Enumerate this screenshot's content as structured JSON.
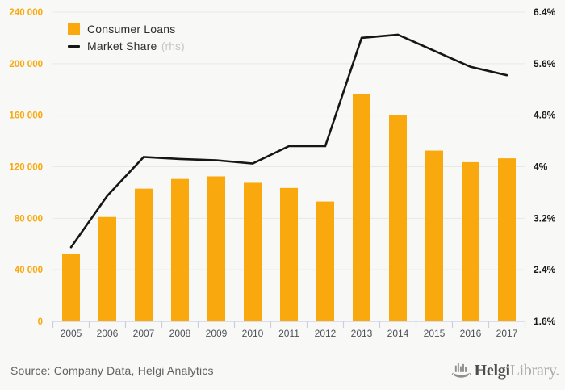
{
  "chart_data": {
    "type": "bar+line",
    "categories": [
      "2005",
      "2006",
      "2007",
      "2008",
      "2009",
      "2010",
      "2011",
      "2012",
      "2013",
      "2014",
      "2015",
      "2016",
      "2017"
    ],
    "series": [
      {
        "name": "Consumer Loans",
        "type": "bar",
        "axis": "left",
        "values": [
          52500,
          81000,
          103000,
          110500,
          112500,
          107500,
          103500,
          93000,
          176500,
          160000,
          132500,
          123500,
          126500
        ]
      },
      {
        "name": "Market Share",
        "type": "line",
        "axis": "right",
        "values": [
          2.75,
          3.55,
          4.15,
          4.12,
          4.1,
          4.05,
          4.32,
          4.32,
          6.0,
          6.05,
          5.8,
          5.55,
          5.42
        ]
      }
    ],
    "left_axis": {
      "min": 0,
      "max": 240000,
      "step": 40000,
      "tick_labels": [
        "0",
        "40 000",
        "80 000",
        "120 000",
        "160 000",
        "200 000",
        "240 000"
      ]
    },
    "right_axis": {
      "min": 1.6,
      "max": 6.4,
      "step": 0.8,
      "tick_labels": [
        "1.6%",
        "2.4%",
        "3.2%",
        "4%",
        "4.8%",
        "5.6%",
        "6.4%"
      ]
    },
    "legend": [
      {
        "label": "Consumer Loans",
        "suffix": ""
      },
      {
        "label": "Market Share",
        "suffix": "(rhs)"
      }
    ],
    "grid": "horizontal",
    "legend_position": "top-left"
  },
  "colors": {
    "bar": "#f9a80d",
    "line": "#161616",
    "left_axis_label": "#f9a80d",
    "right_axis_label": "#1b1b1b",
    "x_axis_label": "#4d5158",
    "gridline": "#e8e8e5",
    "axis_line": "#c9cee4",
    "background": "#f8f8f6"
  },
  "footer": {
    "source": "Source: Company Data, Helgi Analytics",
    "logo_bold": "Helgi",
    "logo_light": "Library."
  }
}
